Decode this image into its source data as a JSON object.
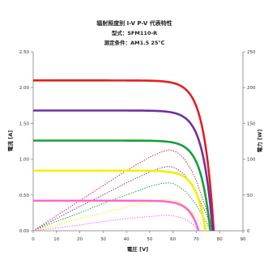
{
  "chart_data": {
    "type": "line",
    "title": "辐射照度别 I-V  P-V  代表特性",
    "subtitle_lines": [
      "型式：SFM110-R",
      "测定条件：AM1.5  25℃"
    ],
    "xlabel": "電圧 [V]",
    "ylabel_left": "電流 [A]",
    "ylabel_right": "電力 [W]",
    "xlim": [
      0,
      90
    ],
    "ylim_left": [
      0,
      2.5
    ],
    "ylim_right": [
      0,
      250
    ],
    "x_ticks": [
      "0",
      "10",
      "20",
      "30",
      "40",
      "50",
      "60",
      "70",
      "80",
      "90"
    ],
    "y_left_ticks": [
      "0.00",
      "0.50",
      "1.00",
      "1.50",
      "2.00",
      "2.50"
    ],
    "y_right_ticks": [
      "0",
      "50",
      "100",
      "150",
      "200",
      "250"
    ],
    "grid": false,
    "legend": "none",
    "iv_curves": [
      {
        "color": "#e02020",
        "isc": 2.1,
        "voc": 77.5
      },
      {
        "color": "#7030a0",
        "isc": 1.68,
        "voc": 77.0
      },
      {
        "color": "#14a03c",
        "isc": 1.26,
        "voc": 76.0
      },
      {
        "color": "#f0f000",
        "isc": 0.84,
        "voc": 74.0
      },
      {
        "color": "#ff66cc",
        "isc": 0.42,
        "voc": 71.0
      }
    ],
    "pv_curves": [
      {
        "color": "#e02020",
        "x": [
          0,
          10,
          20,
          30,
          40,
          50,
          55,
          58,
          60,
          62,
          65,
          68,
          70,
          72,
          74,
          76,
          77.5
        ],
        "y": [
          0,
          21,
          42,
          63,
          84,
          103,
          110,
          113,
          112,
          109,
          100,
          84,
          70,
          52,
          33,
          14,
          0
        ]
      },
      {
        "color": "#7030a0",
        "x": [
          0,
          10,
          20,
          30,
          40,
          50,
          55,
          58,
          60,
          62,
          65,
          68,
          70,
          72,
          74,
          76,
          77
        ],
        "y": [
          0,
          17,
          34,
          50,
          67,
          82,
          88,
          90,
          89,
          86,
          78,
          64,
          53,
          39,
          25,
          10,
          0
        ]
      },
      {
        "color": "#14a03c",
        "x": [
          0,
          10,
          20,
          30,
          40,
          50,
          55,
          58,
          60,
          62,
          65,
          68,
          70,
          72,
          74,
          76
        ],
        "y": [
          0,
          13,
          25,
          38,
          50,
          62,
          66,
          67,
          66,
          63,
          56,
          45,
          36,
          25,
          14,
          0
        ]
      },
      {
        "color": "#f0f000",
        "x": [
          0,
          10,
          20,
          30,
          40,
          50,
          55,
          58,
          60,
          63,
          66,
          69,
          72,
          74
        ],
        "y": [
          0,
          8,
          17,
          25,
          33,
          40,
          43,
          44,
          43,
          40,
          33,
          22,
          10,
          0
        ]
      },
      {
        "color": "#ff66cc",
        "x": [
          0,
          10,
          20,
          30,
          40,
          50,
          55,
          58,
          60,
          63,
          66,
          69,
          71
        ],
        "y": [
          0,
          4,
          8,
          13,
          17,
          20,
          21,
          21.5,
          21,
          19,
          15,
          8,
          0
        ]
      }
    ]
  }
}
